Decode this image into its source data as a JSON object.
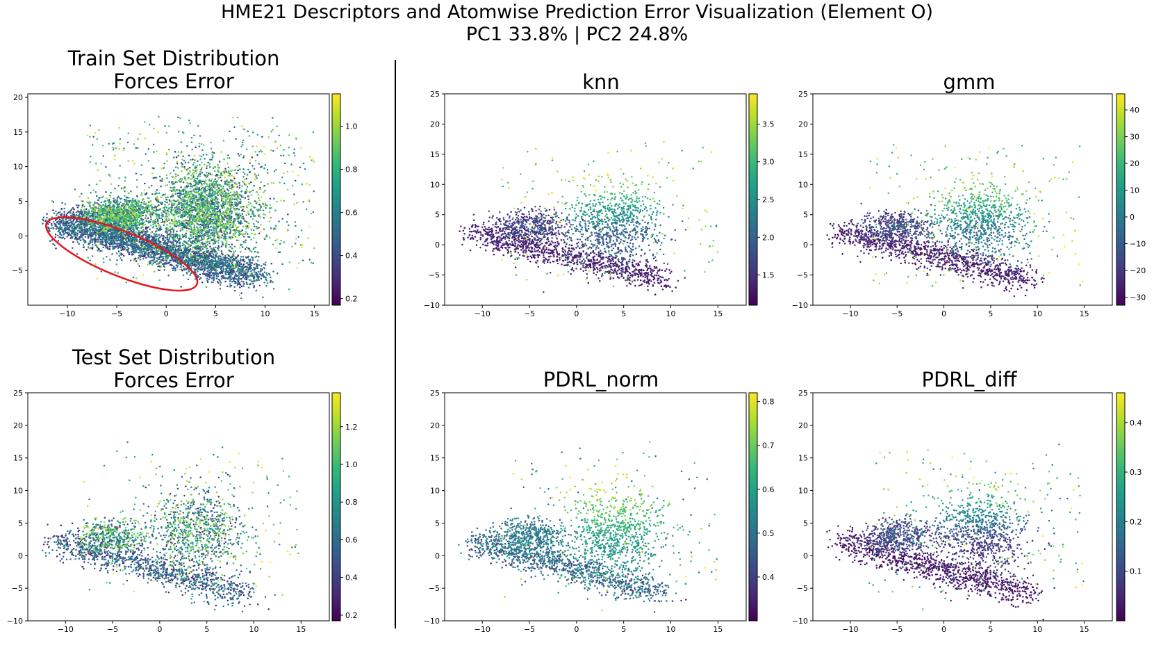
{
  "figure": {
    "title_line1": "HME21 Descriptors and Atomwise Prediction Error Visualization (Element O)",
    "title_line2": "PC1 33.8% | PC2 24.8%"
  },
  "chart_data": [
    {
      "id": "train",
      "type": "scatter",
      "title_line1": "Train Set Distribution",
      "title_line2": "Forces Error",
      "xlim": [
        -14,
        16.5
      ],
      "ylim": [
        -10,
        20.5
      ],
      "xticks": [
        -10,
        -5,
        0,
        5,
        10,
        15
      ],
      "yticks": [
        -5,
        0,
        5,
        10,
        15,
        20
      ],
      "xtick_labels": [
        "−10",
        "−5",
        "0",
        "5",
        "10",
        "15"
      ],
      "ytick_labels": [
        "−5",
        "0",
        "5",
        "10",
        "15",
        "20"
      ],
      "colorbar": {
        "cmap": "viridis",
        "min": 0.17,
        "max": 1.15,
        "ticks": [
          0.2,
          0.4,
          0.6,
          0.8,
          1.0
        ],
        "tick_labels": [
          "0.2",
          "0.4",
          "0.6",
          "0.8",
          "1.0"
        ]
      },
      "n_points": 7000,
      "annotation": {
        "shape": "ellipse",
        "color": "#e8141c",
        "center": [
          -4.5,
          -2.6
        ],
        "rx": 8.2,
        "ry": 3.2,
        "angle_deg": -22
      }
    },
    {
      "id": "test",
      "type": "scatter",
      "title_line1": "Test Set Distribution",
      "title_line2": "Forces Error",
      "xlim": [
        -14,
        18
      ],
      "ylim": [
        -10,
        25
      ],
      "xticks": [
        -10,
        -5,
        0,
        5,
        10,
        15
      ],
      "yticks": [
        -10,
        -5,
        0,
        5,
        10,
        15,
        20,
        25
      ],
      "xtick_labels": [
        "−10",
        "−5",
        "0",
        "5",
        "10",
        "15"
      ],
      "ytick_labels": [
        "−10",
        "−5",
        "0",
        "5",
        "10",
        "15",
        "20",
        "25"
      ],
      "colorbar": {
        "cmap": "viridis",
        "min": 0.17,
        "max": 1.38,
        "ticks": [
          0.2,
          0.4,
          0.6,
          0.8,
          1.0,
          1.2
        ],
        "tick_labels": [
          "0.2",
          "0.4",
          "0.6",
          "0.8",
          "1.0",
          "1.2"
        ]
      },
      "n_points": 2400
    },
    {
      "id": "knn",
      "type": "scatter",
      "title_line1": "knn",
      "xlim": [
        -14,
        18
      ],
      "ylim": [
        -10,
        25
      ],
      "xticks": [
        -10,
        -5,
        0,
        5,
        10,
        15
      ],
      "yticks": [
        -10,
        -5,
        0,
        5,
        10,
        15,
        20,
        25
      ],
      "xtick_labels": [
        "−10",
        "−5",
        "0",
        "5",
        "10",
        "15"
      ],
      "ytick_labels": [
        "−10",
        "−5",
        "0",
        "5",
        "10",
        "15",
        "20",
        "25"
      ],
      "colorbar": {
        "cmap": "viridis",
        "min": 1.1,
        "max": 3.9,
        "ticks": [
          1.5,
          2.0,
          2.5,
          3.0,
          3.5
        ],
        "tick_labels": [
          "1.5",
          "2.0",
          "2.5",
          "3.0",
          "3.5"
        ]
      },
      "n_points": 2400
    },
    {
      "id": "gmm",
      "type": "scatter",
      "title_line1": "gmm",
      "xlim": [
        -14,
        18
      ],
      "ylim": [
        -10,
        25
      ],
      "xticks": [
        -10,
        -5,
        0,
        5,
        10,
        15
      ],
      "yticks": [
        -10,
        -5,
        0,
        5,
        10,
        15,
        20,
        25
      ],
      "xtick_labels": [
        "−10",
        "−5",
        "0",
        "5",
        "10",
        "15"
      ],
      "ytick_labels": [
        "−10",
        "−5",
        "0",
        "5",
        "10",
        "15",
        "20",
        "25"
      ],
      "colorbar": {
        "cmap": "viridis",
        "min": -33,
        "max": 46,
        "ticks": [
          -30,
          -20,
          -10,
          0,
          10,
          20,
          30,
          40
        ],
        "tick_labels": [
          "−30",
          "−20",
          "−10",
          "0",
          "10",
          "20",
          "30",
          "40"
        ]
      },
      "n_points": 2400
    },
    {
      "id": "pdrl_norm",
      "type": "scatter",
      "title_line1": "PDRL_norm",
      "xlim": [
        -14,
        18
      ],
      "ylim": [
        -10,
        25
      ],
      "xticks": [
        -10,
        -5,
        0,
        5,
        10,
        15
      ],
      "yticks": [
        -10,
        -5,
        0,
        5,
        10,
        15,
        20,
        25
      ],
      "xtick_labels": [
        "−10",
        "−5",
        "0",
        "5",
        "10",
        "15"
      ],
      "ytick_labels": [
        "−10",
        "−5",
        "0",
        "5",
        "10",
        "15",
        "20",
        "25"
      ],
      "colorbar": {
        "cmap": "viridis",
        "min": 0.3,
        "max": 0.82,
        "ticks": [
          0.4,
          0.5,
          0.6,
          0.7,
          0.8
        ],
        "tick_labels": [
          "0.4",
          "0.5",
          "0.6",
          "0.7",
          "0.8"
        ]
      },
      "n_points": 2400
    },
    {
      "id": "pdrl_diff",
      "type": "scatter",
      "title_line1": "PDRL_diff",
      "xlim": [
        -14,
        18
      ],
      "ylim": [
        -10,
        25
      ],
      "xticks": [
        -10,
        -5,
        0,
        5,
        10,
        15
      ],
      "yticks": [
        -10,
        -5,
        0,
        5,
        10,
        15,
        20,
        25
      ],
      "xtick_labels": [
        "−10",
        "−5",
        "0",
        "5",
        "10",
        "15"
      ],
      "ytick_labels": [
        "−10",
        "−5",
        "0",
        "5",
        "10",
        "15",
        "20",
        "25"
      ],
      "colorbar": {
        "cmap": "viridis",
        "min": 0.0,
        "max": 0.46,
        "ticks": [
          0.1,
          0.2,
          0.3,
          0.4
        ],
        "tick_labels": [
          "0.1",
          "0.2",
          "0.3",
          "0.4"
        ]
      },
      "n_points": 2400
    }
  ]
}
